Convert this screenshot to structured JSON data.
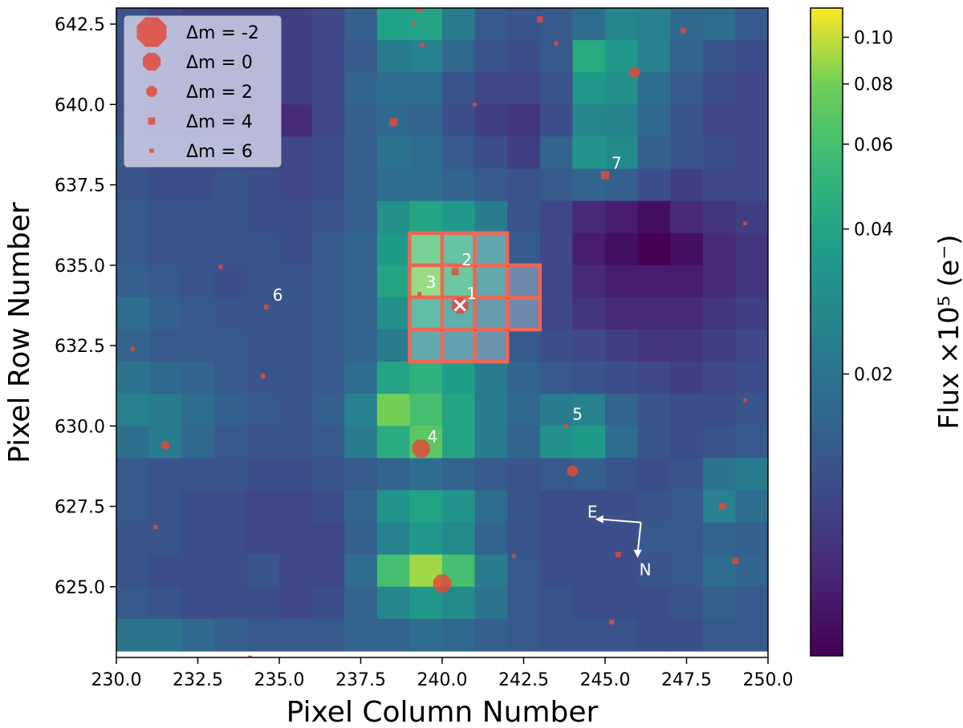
{
  "chart_data": {
    "type": "heatmap",
    "xlabel": "Pixel Column Number",
    "ylabel": "Pixel Row Number",
    "xlim": [
      230.0,
      250.0
    ],
    "ylim": [
      622.8,
      643.0
    ],
    "x_ticks": [
      230.0,
      232.5,
      235.0,
      237.5,
      240.0,
      242.5,
      245.0,
      247.5,
      250.0
    ],
    "x_tick_labels": [
      "230.0",
      "232.5",
      "235.0",
      "237.5",
      "240.0",
      "242.5",
      "245.0",
      "247.5",
      "250.0"
    ],
    "y_ticks": [
      625.0,
      627.5,
      630.0,
      632.5,
      635.0,
      637.5,
      640.0,
      642.5
    ],
    "y_tick_labels": [
      "625.0",
      "627.5",
      "630.0",
      "632.5",
      "635.0",
      "637.5",
      "640.0",
      "642.5"
    ],
    "grid": false,
    "colormap": "viridis",
    "colorbar": {
      "label": "Flux ×10⁵ (e⁻)",
      "scale": "log",
      "range": [
        0.0052,
        0.115
      ],
      "ticks": [
        0.02,
        0.04,
        0.06,
        0.08,
        0.1
      ],
      "tick_labels": [
        "0.02",
        "0.04",
        "0.06",
        "0.08",
        "0.10"
      ]
    },
    "pixel_grid": {
      "x_start": 230,
      "y_start": 623,
      "cols": 20,
      "rows": 20,
      "values_top_to_bottom": [
        [
          0.013,
          0.011,
          0.01,
          0.01,
          0.01,
          0.01,
          0.011,
          0.015,
          0.038,
          0.04,
          0.022,
          0.014,
          0.013,
          0.014,
          0.018,
          0.026,
          0.024,
          0.017,
          0.018,
          0.014
        ],
        [
          0.012,
          0.011,
          0.01,
          0.01,
          0.01,
          0.01,
          0.011,
          0.014,
          0.022,
          0.024,
          0.017,
          0.013,
          0.012,
          0.014,
          0.044,
          0.034,
          0.024,
          0.016,
          0.013,
          0.012
        ],
        [
          0.012,
          0.011,
          0.01,
          0.01,
          0.01,
          0.01,
          0.011,
          0.016,
          0.018,
          0.018,
          0.013,
          0.011,
          0.011,
          0.013,
          0.034,
          0.03,
          0.018,
          0.014,
          0.012,
          0.011
        ],
        [
          0.012,
          0.011,
          0.01,
          0.009,
          0.009,
          0.008,
          0.011,
          0.015,
          0.017,
          0.016,
          0.012,
          0.01,
          0.009,
          0.012,
          0.026,
          0.025,
          0.017,
          0.013,
          0.011,
          0.011
        ],
        [
          0.014,
          0.012,
          0.012,
          0.012,
          0.011,
          0.011,
          0.012,
          0.015,
          0.02,
          0.018,
          0.014,
          0.012,
          0.01,
          0.016,
          0.032,
          0.028,
          0.015,
          0.013,
          0.012,
          0.011
        ],
        [
          0.013,
          0.012,
          0.012,
          0.013,
          0.012,
          0.011,
          0.012,
          0.015,
          0.018,
          0.018,
          0.016,
          0.014,
          0.013,
          0.014,
          0.016,
          0.015,
          0.012,
          0.01,
          0.011,
          0.011
        ],
        [
          0.014,
          0.013,
          0.013,
          0.013,
          0.012,
          0.012,
          0.013,
          0.015,
          0.03,
          0.04,
          0.034,
          0.022,
          0.013,
          0.011,
          0.008,
          0.007,
          0.006,
          0.008,
          0.009,
          0.01
        ],
        [
          0.014,
          0.013,
          0.013,
          0.013,
          0.013,
          0.012,
          0.014,
          0.016,
          0.035,
          0.06,
          0.045,
          0.025,
          0.014,
          0.011,
          0.007,
          0.006,
          0.005,
          0.006,
          0.008,
          0.009
        ],
        [
          0.015,
          0.014,
          0.013,
          0.012,
          0.013,
          0.013,
          0.014,
          0.016,
          0.04,
          0.08,
          0.05,
          0.026,
          0.014,
          0.011,
          0.008,
          0.007,
          0.007,
          0.007,
          0.008,
          0.009
        ],
        [
          0.018,
          0.015,
          0.014,
          0.013,
          0.013,
          0.013,
          0.014,
          0.016,
          0.03,
          0.04,
          0.03,
          0.02,
          0.014,
          0.011,
          0.009,
          0.008,
          0.008,
          0.008,
          0.009,
          0.01
        ],
        [
          0.016,
          0.014,
          0.014,
          0.014,
          0.013,
          0.013,
          0.014,
          0.016,
          0.022,
          0.026,
          0.022,
          0.017,
          0.014,
          0.012,
          0.011,
          0.01,
          0.009,
          0.009,
          0.01,
          0.011
        ],
        [
          0.02,
          0.017,
          0.016,
          0.014,
          0.013,
          0.013,
          0.014,
          0.018,
          0.04,
          0.048,
          0.036,
          0.022,
          0.016,
          0.014,
          0.013,
          0.012,
          0.011,
          0.01,
          0.011,
          0.012
        ],
        [
          0.024,
          0.022,
          0.018,
          0.015,
          0.014,
          0.013,
          0.015,
          0.024,
          0.08,
          0.06,
          0.04,
          0.022,
          0.017,
          0.022,
          0.024,
          0.016,
          0.013,
          0.012,
          0.012,
          0.013
        ],
        [
          0.019,
          0.022,
          0.017,
          0.014,
          0.013,
          0.013,
          0.014,
          0.022,
          0.045,
          0.07,
          0.04,
          0.022,
          0.016,
          0.03,
          0.035,
          0.018,
          0.013,
          0.012,
          0.013,
          0.014
        ],
        [
          0.014,
          0.013,
          0.013,
          0.013,
          0.012,
          0.012,
          0.013,
          0.014,
          0.016,
          0.018,
          0.016,
          0.014,
          0.013,
          0.014,
          0.015,
          0.013,
          0.012,
          0.013,
          0.02,
          0.022
        ],
        [
          0.014,
          0.013,
          0.012,
          0.012,
          0.011,
          0.011,
          0.012,
          0.016,
          0.032,
          0.04,
          0.032,
          0.018,
          0.013,
          0.012,
          0.012,
          0.012,
          0.013,
          0.014,
          0.024,
          0.018
        ],
        [
          0.013,
          0.013,
          0.012,
          0.012,
          0.011,
          0.011,
          0.011,
          0.015,
          0.024,
          0.034,
          0.028,
          0.016,
          0.013,
          0.012,
          0.012,
          0.012,
          0.014,
          0.014,
          0.016,
          0.015
        ],
        [
          0.013,
          0.012,
          0.012,
          0.012,
          0.013,
          0.011,
          0.011,
          0.018,
          0.06,
          0.09,
          0.06,
          0.022,
          0.014,
          0.012,
          0.012,
          0.012,
          0.013,
          0.014,
          0.018,
          0.016
        ],
        [
          0.014,
          0.013,
          0.012,
          0.012,
          0.012,
          0.011,
          0.012,
          0.016,
          0.026,
          0.034,
          0.028,
          0.02,
          0.014,
          0.013,
          0.012,
          0.012,
          0.012,
          0.013,
          0.015,
          0.014
        ],
        [
          0.02,
          0.02,
          0.017,
          0.015,
          0.014,
          0.014,
          0.014,
          0.016,
          0.016,
          0.018,
          0.017,
          0.015,
          0.014,
          0.013,
          0.013,
          0.013,
          0.012,
          0.012,
          0.014,
          0.014
        ]
      ]
    },
    "aperture_pixels": [
      [
        239,
        635
      ],
      [
        240,
        635
      ],
      [
        241,
        635
      ],
      [
        239,
        634
      ],
      [
        240,
        634
      ],
      [
        241,
        634
      ],
      [
        242,
        634
      ],
      [
        239,
        633
      ],
      [
        240,
        633
      ],
      [
        241,
        633
      ],
      [
        242,
        633
      ],
      [
        239,
        632
      ],
      [
        240,
        632
      ],
      [
        241,
        632
      ]
    ],
    "aperture_color": "#ee6655",
    "marker_color": "#e04a3c",
    "stars": [
      {
        "x": 240.55,
        "y": 633.75,
        "dm": 0.3,
        "label": "1"
      },
      {
        "x": 240.4,
        "y": 634.8,
        "dm": 4.0,
        "label": "2"
      },
      {
        "x": 239.3,
        "y": 634.1,
        "dm": 6.0,
        "label": "3"
      },
      {
        "x": 239.35,
        "y": 629.3,
        "dm": 0.0,
        "label": "4"
      },
      {
        "x": 243.8,
        "y": 630.0,
        "dm": 6.0,
        "label": "5"
      },
      {
        "x": 234.6,
        "y": 633.7,
        "dm": 5.5,
        "label": "6"
      },
      {
        "x": 245.0,
        "y": 637.8,
        "dm": 3.5,
        "label": "7"
      },
      {
        "x": 240.0,
        "y": 625.1,
        "dm": 0.0,
        "label": ""
      },
      {
        "x": 245.9,
        "y": 641.0,
        "dm": 2.0,
        "label": ""
      },
      {
        "x": 244.0,
        "y": 628.6,
        "dm": 2.0,
        "label": ""
      },
      {
        "x": 231.5,
        "y": 629.4,
        "dm": 3.0,
        "label": ""
      },
      {
        "x": 238.5,
        "y": 639.45,
        "dm": 3.5,
        "label": ""
      },
      {
        "x": 239.3,
        "y": 643.0,
        "dm": 3.0,
        "label": ""
      },
      {
        "x": 243.0,
        "y": 642.65,
        "dm": 4.5,
        "label": ""
      },
      {
        "x": 247.4,
        "y": 642.3,
        "dm": 5.0,
        "label": ""
      },
      {
        "x": 248.6,
        "y": 627.5,
        "dm": 4.0,
        "label": ""
      },
      {
        "x": 249.0,
        "y": 625.8,
        "dm": 4.5,
        "label": ""
      },
      {
        "x": 245.4,
        "y": 626.0,
        "dm": 5.0,
        "label": ""
      },
      {
        "x": 234.5,
        "y": 631.55,
        "dm": 5.5,
        "label": ""
      },
      {
        "x": 233.2,
        "y": 634.95,
        "dm": 6.0,
        "label": ""
      },
      {
        "x": 230.5,
        "y": 632.4,
        "dm": 6.0,
        "label": ""
      },
      {
        "x": 231.2,
        "y": 626.85,
        "dm": 6.0,
        "label": ""
      },
      {
        "x": 245.2,
        "y": 623.9,
        "dm": 5.5,
        "label": ""
      },
      {
        "x": 249.3,
        "y": 636.3,
        "dm": 6.5,
        "label": ""
      },
      {
        "x": 249.3,
        "y": 630.8,
        "dm": 6.5,
        "label": ""
      },
      {
        "x": 241.0,
        "y": 640.0,
        "dm": 6.5,
        "label": ""
      },
      {
        "x": 243.5,
        "y": 641.9,
        "dm": 6.0,
        "label": ""
      },
      {
        "x": 239.1,
        "y": 642.5,
        "dm": 6.5,
        "label": ""
      },
      {
        "x": 239.4,
        "y": 641.85,
        "dm": 6.0,
        "label": ""
      },
      {
        "x": 242.2,
        "y": 625.95,
        "dm": 6.5,
        "label": ""
      },
      {
        "x": 234.1,
        "y": 622.8,
        "dm": 6.5,
        "label": ""
      }
    ],
    "target": {
      "x": 240.55,
      "y": 633.75,
      "symbol": "×"
    },
    "compass": {
      "origin": [
        246.1,
        627.0
      ],
      "east_tip": [
        244.7,
        627.1
      ],
      "north_tip": [
        246.0,
        625.9
      ],
      "east_label": "E",
      "north_label": "N"
    },
    "legend": {
      "placement": "top-left",
      "entries": [
        {
          "text": "Δm =  -2",
          "dm": -2
        },
        {
          "text": "Δm =  0",
          "dm": 0
        },
        {
          "text": "Δm =  2",
          "dm": 2
        },
        {
          "text": "Δm =  4",
          "dm": 4
        },
        {
          "text": "Δm =  6",
          "dm": 6
        }
      ]
    }
  }
}
